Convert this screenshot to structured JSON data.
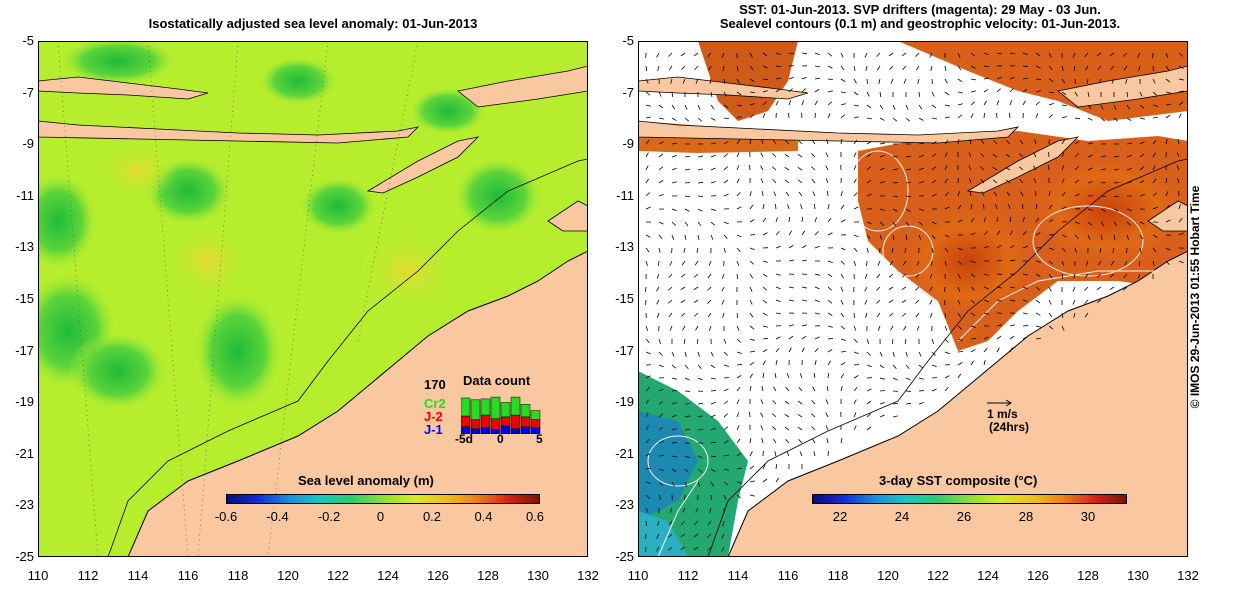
{
  "left": {
    "title": "Isostatically adjusted sea level anomaly: 01-Jun-2013",
    "colorbar_label": "Sea level anomaly (m)",
    "colorbar_ticks": [
      "-0.6",
      "-0.4",
      "-0.2",
      "0",
      "0.2",
      "0.4",
      "0.6"
    ],
    "inset": {
      "count": "170",
      "title": "Data count",
      "sat1": "Cr2",
      "sat2": "J-2",
      "sat3": "J-1",
      "sat1_color": "#22dd22",
      "sat2_color": "#ee0000",
      "sat3_color": "#0000ee",
      "x_left": "-5d",
      "x_mid": "0",
      "x_right": "5"
    }
  },
  "right": {
    "title_line1": "SST: 01-Jun-2013. SVP drifters (magenta): 29 May - 03 Jun.",
    "title_line2": "Sealevel contours (0.1 m) and geostrophic velocity: 01-Jun-2013.",
    "colorbar_label": "3-day SST composite (°C)",
    "colorbar_ticks": [
      "22",
      "24",
      "26",
      "28",
      "30"
    ],
    "scale_label": "1 m/s",
    "scale_sub": "(24hrs)"
  },
  "y_ticks": [
    "-5",
    "-7",
    "-9",
    "-11",
    "-13",
    "-15",
    "-17",
    "-19",
    "-21",
    "-23",
    "-25"
  ],
  "x_ticks": [
    "110",
    "112",
    "114",
    "116",
    "118",
    "120",
    "122",
    "124",
    "126",
    "128",
    "130",
    "132"
  ],
  "copyright": "© IMOS 29-Jun-2013 01:55 Hobart Time",
  "colors": {
    "land": "#f9c8a0",
    "sla_base": "#b6ee2e",
    "sst_warm": "#d85a12",
    "sst_cool": "#1fa06a"
  }
}
